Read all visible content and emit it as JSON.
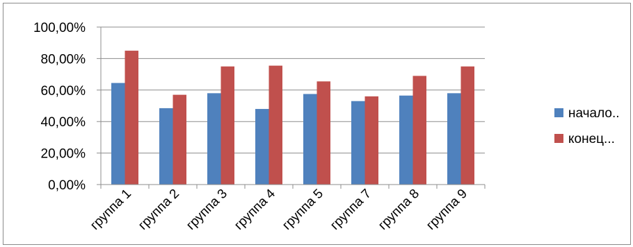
{
  "chart_data": {
    "type": "bar",
    "categories": [
      "группа 1",
      "группа 2",
      "группа 3",
      "группа 4",
      "группа 5",
      "группа 7",
      "группа 8",
      "группа 9"
    ],
    "series": [
      {
        "name": "начало..",
        "color": "#4f81bd",
        "values": [
          64.5,
          48.5,
          58.0,
          48.0,
          57.5,
          53.0,
          56.5,
          58.0
        ]
      },
      {
        "name": "конец...",
        "color": "#c0504d",
        "values": [
          85.0,
          57.0,
          75.0,
          75.5,
          65.5,
          56.0,
          69.0,
          75.0
        ]
      }
    ],
    "yticks": [
      "0,00%",
      "20,00%",
      "40,00%",
      "60,00%",
      "80,00%",
      "100,00%"
    ],
    "ylim": [
      0,
      100
    ],
    "grid": true,
    "legend": "right",
    "title": "",
    "xlabel": "",
    "ylabel": ""
  }
}
